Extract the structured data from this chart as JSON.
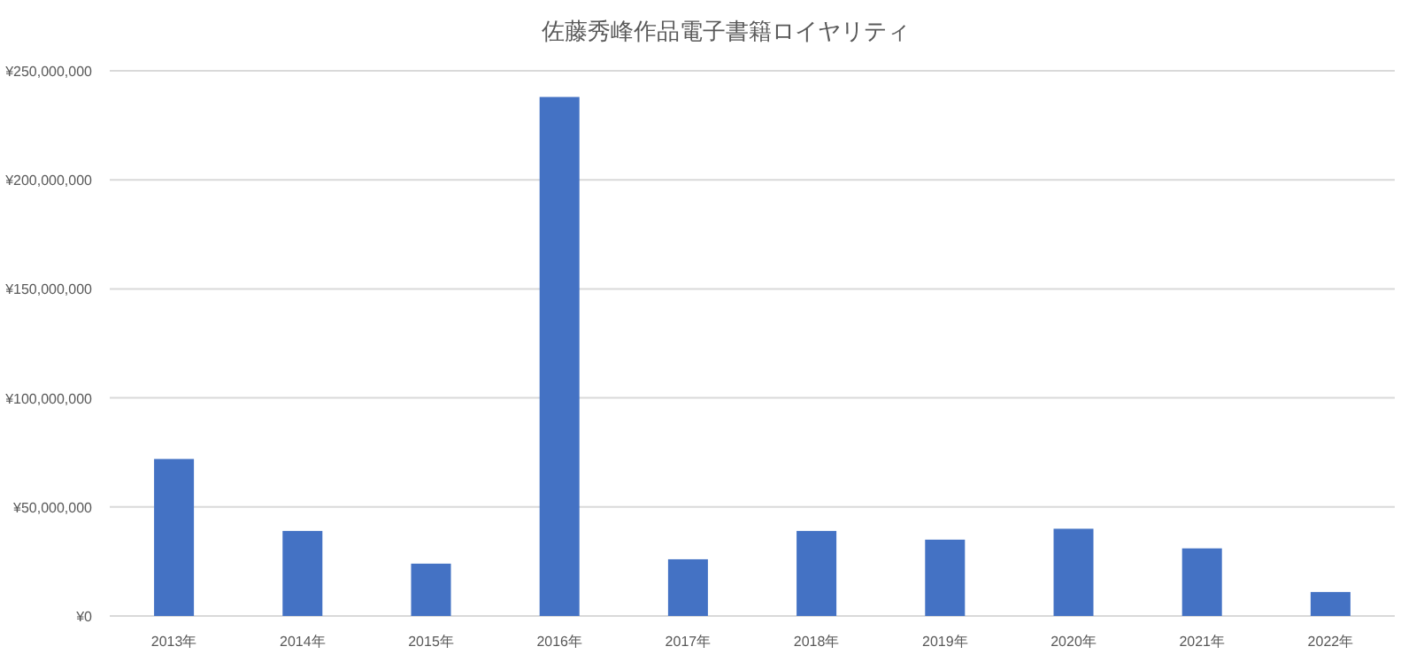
{
  "chart_data": {
    "type": "bar",
    "title": "佐藤秀峰作品電子書籍ロイヤリティ",
    "categories": [
      "2013年",
      "2014年",
      "2015年",
      "2016年",
      "2017年",
      "2018年",
      "2019年",
      "2020年",
      "2021年",
      "2022年"
    ],
    "values": [
      72000000,
      39000000,
      24000000,
      238000000,
      26000000,
      39000000,
      35000000,
      40000000,
      31000000,
      11000000
    ],
    "color": "#4472c4",
    "ylim": [
      0,
      250000000
    ],
    "yticks": [
      {
        "value": 0,
        "label": "¥0"
      },
      {
        "value": 50000000,
        "label": "¥50,000,000"
      },
      {
        "value": 100000000,
        "label": "¥100,000,000"
      },
      {
        "value": 150000000,
        "label": "¥150,000,000"
      },
      {
        "value": 200000000,
        "label": "¥200,000,000"
      },
      {
        "value": 250000000,
        "label": "¥250,000,000"
      }
    ],
    "grid": "y"
  }
}
